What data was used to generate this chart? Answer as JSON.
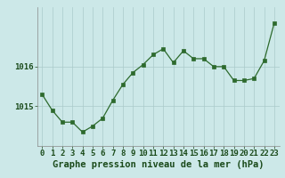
{
  "x": [
    0,
    1,
    2,
    3,
    4,
    5,
    6,
    7,
    8,
    9,
    10,
    11,
    12,
    13,
    14,
    15,
    16,
    17,
    18,
    19,
    20,
    21,
    22,
    23
  ],
  "y": [
    1015.3,
    1014.9,
    1014.6,
    1014.6,
    1014.35,
    1014.5,
    1014.7,
    1015.15,
    1015.55,
    1015.85,
    1016.05,
    1016.3,
    1016.45,
    1016.1,
    1016.4,
    1016.2,
    1016.2,
    1016.0,
    1016.0,
    1015.65,
    1015.65,
    1015.7,
    1016.15,
    1017.1
  ],
  "line_color": "#2d6a2d",
  "marker_color": "#2d6a2d",
  "bg_color": "#cce8e8",
  "grid_color": "#aacaca",
  "axis_label_color": "#1a4a1a",
  "tick_label_color": "#1a4a1a",
  "xlabel": "Graphe pression niveau de la mer (hPa)",
  "yticks": [
    1015,
    1016
  ],
  "ylim": [
    1014.0,
    1017.5
  ],
  "xlim": [
    -0.5,
    23.5
  ],
  "xlabel_fontsize": 7.5,
  "tick_fontsize": 6.5
}
